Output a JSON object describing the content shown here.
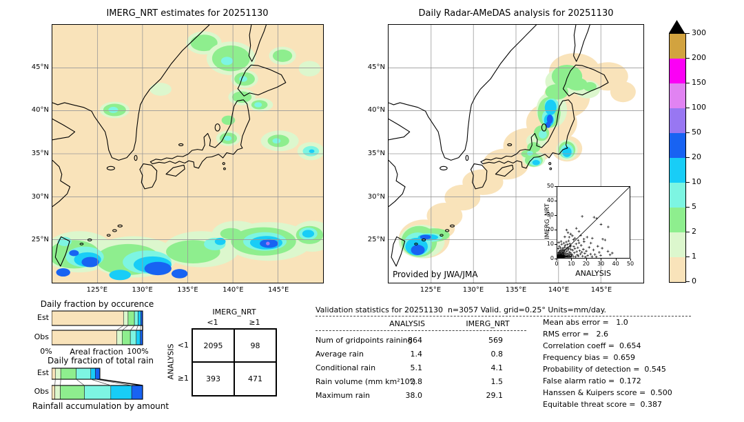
{
  "maps": {
    "left": {
      "title": "IMERG_NRT estimates for 20251130",
      "lon_ticks": [
        "125°E",
        "130°E",
        "135°E",
        "140°E",
        "145°E"
      ],
      "lat_ticks": [
        "45°N",
        "40°N",
        "35°N",
        "30°N",
        "25°N"
      ]
    },
    "right": {
      "title": "Daily Radar-AMeDAS analysis for 20251130",
      "credit": "Provided by JWA/JMA",
      "lon_ticks": [
        "125°E",
        "130°E",
        "135°E",
        "140°E",
        "145°E"
      ],
      "lat_ticks": [
        "45°N",
        "40°N",
        "35°N",
        "30°N",
        "25°N"
      ]
    }
  },
  "chart_data": {
    "colorbar": {
      "type": "heatmap",
      "levels": [
        "0",
        "1",
        "2",
        "5",
        "10",
        "20",
        "50",
        "100",
        "150",
        "200",
        "300"
      ],
      "colors": [
        "#f9e3ba",
        "#dcf7cd",
        "#8eee8e",
        "#7df5e2",
        "#18cdf7",
        "#1863f2",
        "#9877f2",
        "#e183f2",
        "#fb00f5",
        "#d2a33f"
      ],
      "overflow_color": "#000000"
    },
    "occurrence": {
      "type": "bar",
      "title": "Daily fraction by occurence",
      "rows": [
        "Est",
        "Obs"
      ],
      "x_min": "0%",
      "x_label": "Areal fraction",
      "x_max": "100%",
      "est": [
        0.79,
        0.05,
        0.07,
        0.04,
        0.03,
        0.02
      ],
      "obs": [
        0.715,
        0.06,
        0.09,
        0.065,
        0.045,
        0.025
      ],
      "colors": [
        "#f9e3ba",
        "#dcf7cd",
        "#8eee8e",
        "#7df5e2",
        "#18cdf7",
        "#1863f2"
      ]
    },
    "total_rain": {
      "type": "bar",
      "title": "Daily fraction of total rain",
      "caption": "Rainfall accumulation by amount",
      "rows": [
        "Est",
        "Obs"
      ],
      "est": [
        0.04,
        0.06,
        0.17,
        0.16,
        0.05,
        0.05
      ],
      "obs": [
        0.035,
        0.06,
        0.265,
        0.29,
        0.23,
        0.12
      ],
      "colors": [
        "#f9e3ba",
        "#dcf7cd",
        "#8eee8e",
        "#7df5e2",
        "#18cdf7",
        "#1863f2"
      ]
    },
    "contingency": {
      "type": "table",
      "col_title": "IMERG_NRT",
      "row_title": "ANALYSIS",
      "col_labels": [
        "<1",
        "≥1"
      ],
      "row_labels": [
        "<1",
        "≥1"
      ],
      "values": [
        [
          "2095",
          "98"
        ],
        [
          "393",
          "471"
        ]
      ]
    },
    "validation": {
      "type": "table",
      "title": "Validation statistics for 20251130  n=3057 Valid. grid=0.25° Units=mm/day.",
      "columns": [
        "ANALYSIS",
        "IMERG_NRT"
      ],
      "rows": [
        {
          "label": "Num of gridpoints raining",
          "analysis": "864",
          "imerg": "569"
        },
        {
          "label": "Average rain",
          "analysis": "1.4",
          "imerg": "0.8"
        },
        {
          "label": "Conditional rain",
          "analysis": "5.1",
          "imerg": "4.1"
        },
        {
          "label": "Rain volume (mm km²10⁶)",
          "analysis": "2.8",
          "imerg": "1.5"
        },
        {
          "label": "Maximum rain",
          "analysis": "38.0",
          "imerg": "29.1"
        }
      ]
    },
    "scores": {
      "type": "table",
      "items": [
        "Mean abs error =   1.0",
        "RMS error =   2.6",
        "Correlation coeff =  0.654",
        "Frequency bias =  0.659",
        "Probability of detection =  0.545",
        "False alarm ratio =  0.172",
        "Hanssen & Kuipers score =  0.500",
        "Equitable threat score =  0.387"
      ]
    },
    "scatter": {
      "type": "scatter",
      "xlabel": "ANALYSIS",
      "ylabel": "IMERG_NRT",
      "xlim": [
        0,
        50
      ],
      "ylim": [
        0,
        50
      ],
      "ticks": [
        0,
        10,
        20,
        30,
        40,
        50
      ],
      "points": [
        [
          0.2,
          0.4
        ],
        [
          0.3,
          1.5
        ],
        [
          0.4,
          0.1
        ],
        [
          0.5,
          2.8
        ],
        [
          0.6,
          0.7
        ],
        [
          0.7,
          1.9
        ],
        [
          0.8,
          0.3
        ],
        [
          0.9,
          3.6
        ],
        [
          1,
          0.9
        ],
        [
          1.1,
          2.2
        ],
        [
          1.2,
          0.5
        ],
        [
          1.3,
          4.1
        ],
        [
          1.4,
          1.2
        ],
        [
          1.5,
          0.2
        ],
        [
          1.6,
          2.9
        ],
        [
          1.7,
          0.8
        ],
        [
          1.8,
          5
        ],
        [
          1.9,
          1.6
        ],
        [
          2,
          0.4
        ],
        [
          2.1,
          3.3
        ],
        [
          2.2,
          1
        ],
        [
          2.3,
          0.6
        ],
        [
          2.4,
          4.4
        ],
        [
          2.5,
          2
        ],
        [
          2.6,
          0.3
        ],
        [
          2.7,
          1.4
        ],
        [
          2.8,
          5.6
        ],
        [
          2.9,
          0.9
        ],
        [
          3,
          2.5
        ],
        [
          3.1,
          0.5
        ],
        [
          3.2,
          3.8
        ],
        [
          3.3,
          1.1
        ],
        [
          3.5,
          0.7
        ],
        [
          3.6,
          4.9
        ],
        [
          3.7,
          2.3
        ],
        [
          3.8,
          0.4
        ],
        [
          3.9,
          1.8
        ],
        [
          4,
          5.8
        ],
        [
          4.1,
          0.6
        ],
        [
          4.2,
          3.1
        ],
        [
          4.3,
          1.3
        ],
        [
          4.5,
          0.9
        ],
        [
          4.6,
          4.2
        ],
        [
          4.7,
          2.6
        ],
        [
          4.8,
          0.5
        ],
        [
          4.9,
          1.7
        ],
        [
          5,
          5.3
        ],
        [
          5.2,
          0.8
        ],
        [
          5.4,
          3.5
        ],
        [
          5.6,
          1.5
        ],
        [
          5.8,
          6.2
        ],
        [
          6,
          0.6
        ],
        [
          6.2,
          2.7
        ],
        [
          6.4,
          4.6
        ],
        [
          6.6,
          1.2
        ],
        [
          6.8,
          7.1
        ],
        [
          7,
          0.9
        ],
        [
          7.2,
          3
        ],
        [
          7.4,
          5.5
        ],
        [
          7.6,
          1.8
        ],
        [
          7.8,
          0.5
        ],
        [
          8,
          6.6
        ],
        [
          8.2,
          2.4
        ],
        [
          8.4,
          4
        ],
        [
          8.6,
          1.1
        ],
        [
          8.8,
          7.8
        ],
        [
          9,
          0.7
        ],
        [
          9.2,
          3.4
        ],
        [
          9.4,
          5.9
        ],
        [
          9.6,
          2.1
        ],
        [
          9.8,
          1
        ],
        [
          0.6,
          6.5
        ],
        [
          1.4,
          8.2
        ],
        [
          2.2,
          7
        ],
        [
          3,
          9.6
        ],
        [
          3.8,
          6.8
        ],
        [
          4.6,
          10.4
        ],
        [
          5.4,
          8.8
        ],
        [
          6.2,
          11.2
        ],
        [
          7,
          9.4
        ],
        [
          7.8,
          12
        ],
        [
          8.6,
          10
        ],
        [
          9.4,
          8.4
        ],
        [
          1,
          10.8
        ],
        [
          2.6,
          11.6
        ],
        [
          5,
          7.6
        ],
        [
          10.2,
          2.2
        ],
        [
          10.6,
          5.4
        ],
        [
          11,
          1
        ],
        [
          11.4,
          8
        ],
        [
          11.8,
          3.6
        ],
        [
          12.2,
          6.6
        ],
        [
          12.6,
          0.8
        ],
        [
          13,
          9.8
        ],
        [
          13.4,
          4.4
        ],
        [
          13.8,
          2
        ],
        [
          14.2,
          7.2
        ],
        [
          14.6,
          1.4
        ],
        [
          15,
          10.6
        ],
        [
          15.5,
          5
        ],
        [
          16,
          2.8
        ],
        [
          16.5,
          8.8
        ],
        [
          17,
          4
        ],
        [
          17.5,
          1.2
        ],
        [
          18,
          6
        ],
        [
          18.5,
          11.4
        ],
        [
          19,
          3.2
        ],
        [
          19.5,
          0.6
        ],
        [
          20,
          4.8
        ],
        [
          21,
          1.6
        ],
        [
          22,
          7.4
        ],
        [
          23,
          2.6
        ],
        [
          24,
          0.9
        ],
        [
          25,
          5.6
        ],
        [
          26,
          2.4
        ],
        [
          27,
          0.7
        ],
        [
          28,
          8.2
        ],
        [
          29,
          3.9
        ],
        [
          30,
          1.8
        ],
        [
          31,
          6.8
        ],
        [
          33,
          12.6
        ],
        [
          35,
          4.6
        ],
        [
          36.5,
          2.2
        ],
        [
          38,
          3.4
        ],
        [
          13.2,
          20.8
        ],
        [
          15,
          18.6
        ],
        [
          16.2,
          15.8
        ],
        [
          17.2,
          29.2
        ],
        [
          25.4,
          28.6
        ],
        [
          27.2,
          27.8
        ],
        [
          30.2,
          23.6
        ],
        [
          35.2,
          21.8
        ],
        [
          9.2,
          16.8
        ],
        [
          7.4,
          17.8
        ],
        [
          5.2,
          14.8
        ],
        [
          6.4,
          19.6
        ],
        [
          8.2,
          14.6
        ],
        [
          10.4,
          15.6
        ],
        [
          12.2,
          13.8
        ],
        [
          14.4,
          12.4
        ],
        [
          20.6,
          14.6
        ],
        [
          23.2,
          10.4
        ],
        [
          18.4,
          13.2
        ],
        [
          11.2,
          12.8
        ],
        [
          24.2,
          13.8
        ],
        [
          31.4,
          13.2
        ]
      ]
    }
  }
}
